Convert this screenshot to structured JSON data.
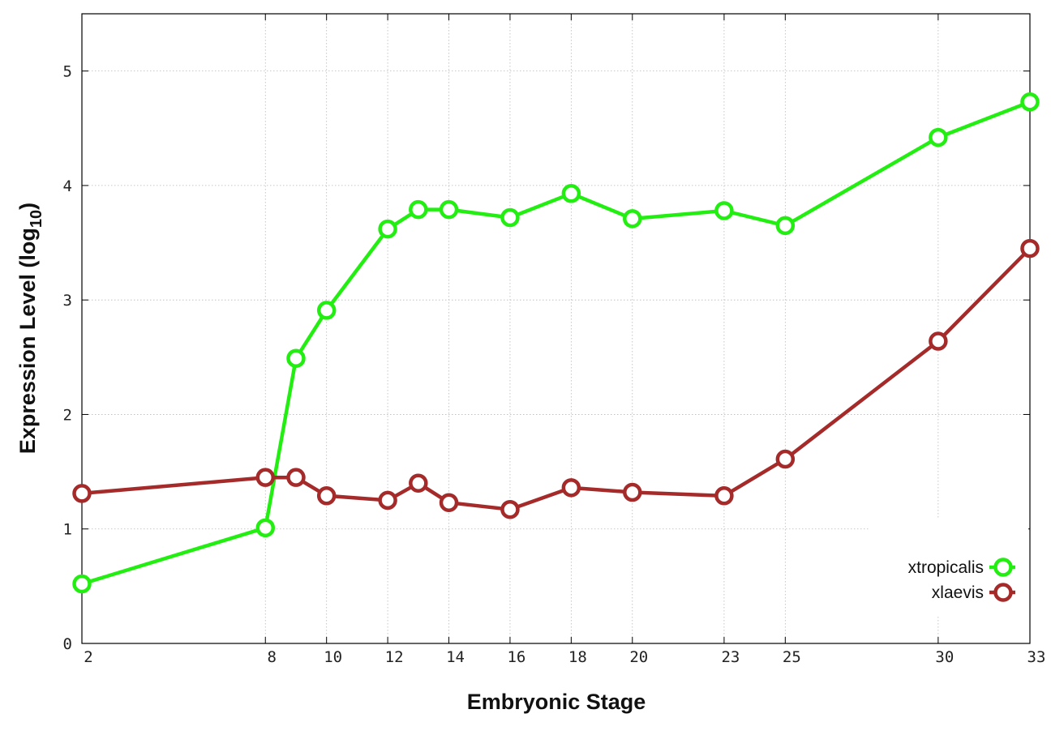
{
  "chart_data": {
    "type": "line",
    "title": "",
    "xlabel": "Embryonic Stage",
    "ylabel_main": "Expression Level (log",
    "ylabel_sub": "10",
    "ylabel_close": ")",
    "x": [
      2,
      8,
      9,
      10,
      12,
      13,
      14,
      16,
      18,
      20,
      23,
      25,
      30,
      33
    ],
    "x_tick_labels": [
      "2",
      "8",
      "10",
      "12",
      "14",
      "16",
      "18",
      "20",
      "23",
      "25",
      "30",
      "33"
    ],
    "y_ticks": [
      0,
      1,
      2,
      3,
      4,
      5
    ],
    "xlim": [
      2,
      33
    ],
    "ylim": [
      0,
      5.5
    ],
    "grid": true,
    "legend_position": "bottom-right",
    "series": [
      {
        "name": "xtropicalis",
        "color": "#22ee11",
        "values": [
          0.52,
          1.01,
          2.49,
          2.91,
          3.62,
          3.79,
          3.79,
          3.72,
          3.93,
          3.71,
          3.78,
          3.65,
          4.42,
          4.73
        ]
      },
      {
        "name": "xlaevis",
        "color": "#a52a2a",
        "values": [
          1.31,
          1.45,
          1.45,
          1.29,
          1.25,
          1.4,
          1.23,
          1.17,
          1.36,
          1.32,
          1.29,
          1.61,
          2.64,
          3.45
        ]
      }
    ]
  }
}
